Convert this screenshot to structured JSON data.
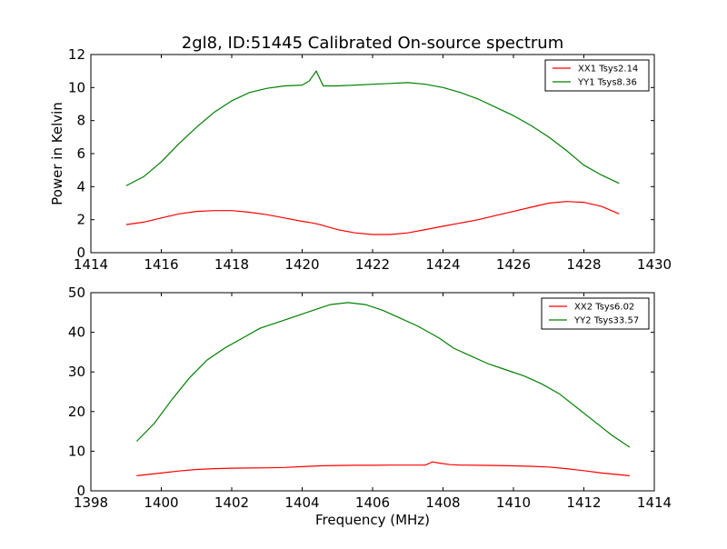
{
  "title": "2gl8, ID:51445 Calibrated On-source spectrum",
  "chart_data": [
    {
      "type": "line",
      "ylabel": "Power in Kelvin",
      "xlabel": "",
      "xlim": [
        1414,
        1430
      ],
      "ylim": [
        0,
        12
      ],
      "xticks": [
        1414,
        1416,
        1418,
        1420,
        1422,
        1424,
        1426,
        1428,
        1430
      ],
      "yticks": [
        0,
        2,
        4,
        6,
        8,
        10,
        12
      ],
      "grid": false,
      "legend": "top-right",
      "series": [
        {
          "name": "XX1 Tsys2.14",
          "color": "#ff0000",
          "x": [
            1415.0,
            1415.5,
            1416.0,
            1416.5,
            1417.0,
            1417.5,
            1418.0,
            1418.5,
            1419.0,
            1419.5,
            1420.0,
            1420.3,
            1420.5,
            1421.0,
            1421.5,
            1422.0,
            1422.5,
            1423.0,
            1423.5,
            1424.0,
            1424.5,
            1425.0,
            1425.5,
            1426.0,
            1426.5,
            1427.0,
            1427.5,
            1428.0,
            1428.5,
            1429.0
          ],
          "y": [
            1.7,
            1.85,
            2.1,
            2.35,
            2.5,
            2.55,
            2.55,
            2.45,
            2.3,
            2.1,
            1.9,
            1.8,
            1.7,
            1.4,
            1.2,
            1.1,
            1.1,
            1.2,
            1.4,
            1.6,
            1.8,
            2.0,
            2.25,
            2.5,
            2.75,
            3.0,
            3.1,
            3.05,
            2.8,
            2.35
          ]
        },
        {
          "name": "YY1 Tsys8.36",
          "color": "#008000",
          "x": [
            1415.0,
            1415.5,
            1416.0,
            1416.5,
            1417.0,
            1417.5,
            1418.0,
            1418.5,
            1419.0,
            1419.5,
            1420.0,
            1420.2,
            1420.4,
            1420.6,
            1421.0,
            1421.5,
            1422.0,
            1422.5,
            1423.0,
            1423.5,
            1424.0,
            1424.5,
            1425.0,
            1425.5,
            1426.0,
            1426.5,
            1427.0,
            1427.5,
            1428.0,
            1428.5,
            1429.0
          ],
          "y": [
            4.05,
            4.6,
            5.5,
            6.6,
            7.6,
            8.5,
            9.2,
            9.7,
            9.95,
            10.1,
            10.15,
            10.4,
            11.0,
            10.1,
            10.1,
            10.15,
            10.2,
            10.25,
            10.3,
            10.2,
            10.0,
            9.7,
            9.3,
            8.8,
            8.3,
            7.7,
            7.0,
            6.2,
            5.3,
            4.7,
            4.2
          ]
        }
      ]
    },
    {
      "type": "line",
      "xlabel": "Frequency (MHz)",
      "ylabel": "",
      "xlim": [
        1398,
        1414
      ],
      "ylim": [
        0,
        50
      ],
      "xticks": [
        1398,
        1400,
        1402,
        1404,
        1406,
        1408,
        1410,
        1412,
        1414
      ],
      "yticks": [
        0,
        10,
        20,
        30,
        40,
        50
      ],
      "grid": false,
      "legend": "top-right",
      "series": [
        {
          "name": "XX2 Tsys6.02",
          "color": "#ff0000",
          "x": [
            1399.3,
            1400.0,
            1400.5,
            1401.0,
            1401.5,
            1402.0,
            1402.5,
            1403.0,
            1403.5,
            1404.0,
            1404.5,
            1405.0,
            1405.5,
            1406.0,
            1406.5,
            1407.0,
            1407.5,
            1407.7,
            1407.9,
            1408.2,
            1408.5,
            1409.0,
            1409.5,
            1410.0,
            1410.5,
            1411.0,
            1411.5,
            1412.0,
            1412.5,
            1413.3
          ],
          "y": [
            3.8,
            4.5,
            5.0,
            5.4,
            5.6,
            5.7,
            5.75,
            5.8,
            5.9,
            6.1,
            6.3,
            6.4,
            6.45,
            6.45,
            6.5,
            6.5,
            6.5,
            7.3,
            7.0,
            6.6,
            6.5,
            6.45,
            6.4,
            6.3,
            6.2,
            6.0,
            5.6,
            5.1,
            4.5,
            3.8
          ]
        },
        {
          "name": "YY2 Tsys33.57",
          "color": "#008000",
          "x": [
            1399.3,
            1399.8,
            1400.3,
            1400.8,
            1401.3,
            1401.8,
            1402.3,
            1402.8,
            1403.3,
            1403.8,
            1404.3,
            1404.8,
            1405.3,
            1405.8,
            1406.3,
            1406.8,
            1407.3,
            1407.6,
            1407.9,
            1408.3,
            1408.8,
            1409.3,
            1409.8,
            1410.3,
            1410.8,
            1411.3,
            1411.8,
            1412.3,
            1412.8,
            1413.3
          ],
          "y": [
            12.5,
            17.0,
            23.0,
            28.5,
            33.0,
            36.0,
            38.5,
            41.0,
            42.5,
            44.0,
            45.5,
            47.0,
            47.5,
            47.0,
            45.5,
            43.5,
            41.5,
            40.0,
            38.5,
            36.0,
            34.0,
            32.0,
            30.5,
            29.0,
            27.0,
            24.5,
            21.0,
            17.5,
            14.0,
            11.0
          ]
        }
      ]
    }
  ]
}
